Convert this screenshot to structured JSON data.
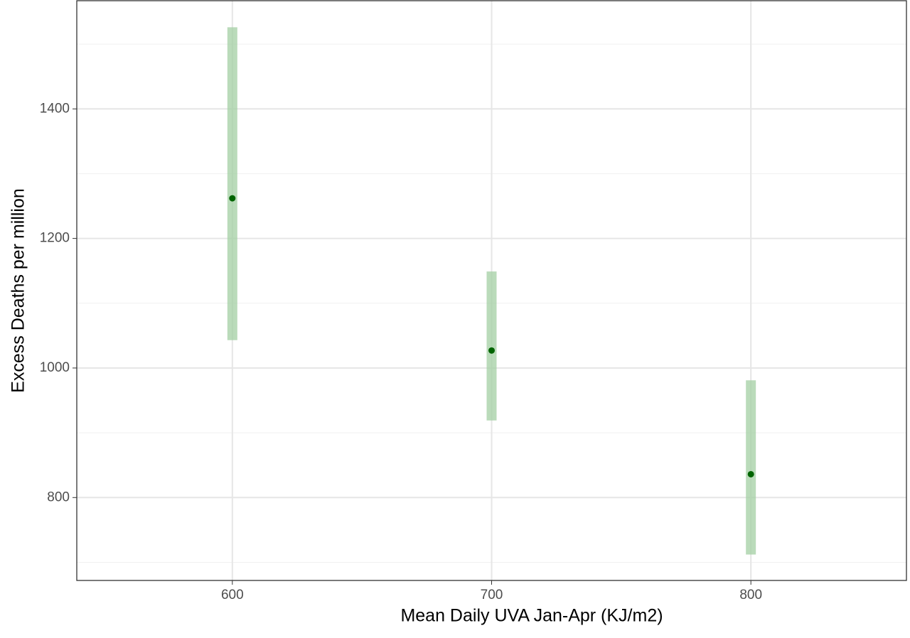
{
  "chart_data": {
    "type": "pointrange",
    "x_label": "Mean Daily UVA Jan-Apr (KJ/m2)",
    "y_label": "Excess Deaths per million",
    "x": [
      600,
      700,
      800
    ],
    "values": [
      1262,
      1027,
      836
    ],
    "lower": [
      1043,
      919,
      712
    ],
    "upper": [
      1526,
      1149,
      981
    ],
    "point_color": "#006400",
    "range_color": "#a3cfa3",
    "xlim": [
      540,
      860
    ],
    "ylim": [
      672,
      1567
    ],
    "xticks": [
      600,
      700,
      800
    ],
    "yticks": [
      800,
      1000,
      1200,
      1400
    ],
    "y_minor_ticks": [
      700,
      900,
      1100,
      1300,
      1500
    ],
    "grid": true
  }
}
